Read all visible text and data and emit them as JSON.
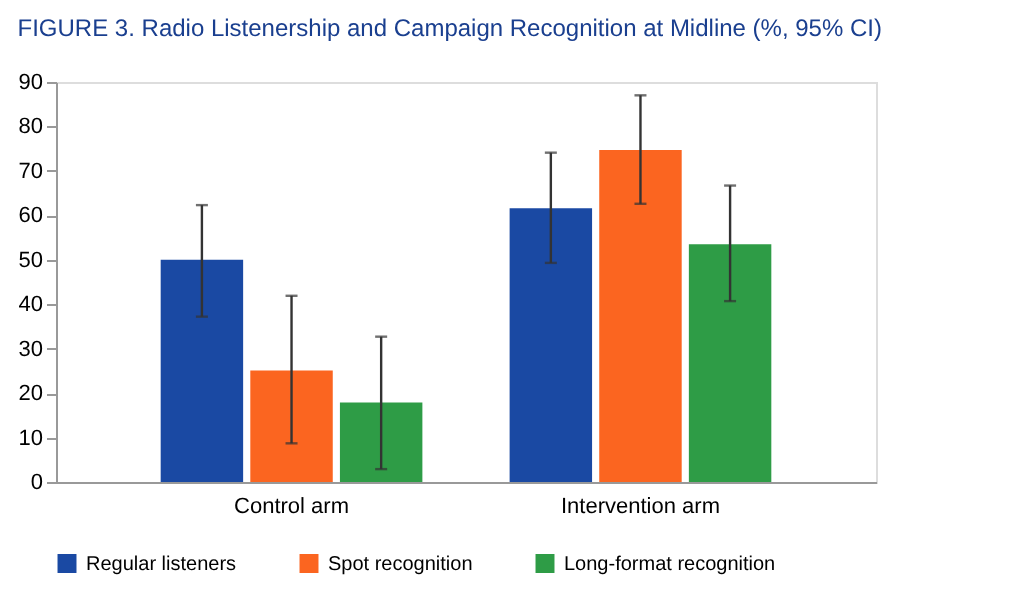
{
  "chart_data": {
    "type": "bar",
    "title": "FIGURE 3. Radio Listenership and Campaign Recognition at Midline (%, 95% CI)",
    "categories": [
      "Control arm",
      "Intervention arm"
    ],
    "series": [
      {
        "name": "Regular listeners",
        "color": "#1a49a3",
        "values": [
          50,
          61.6
        ],
        "errors": [
          [
            37.2,
            62.3
          ],
          [
            49.3,
            74.1
          ]
        ]
      },
      {
        "name": "Spot recognition",
        "color": "#fb6520",
        "values": [
          25.1,
          74.7
        ],
        "errors": [
          [
            8.7,
            41.9
          ],
          [
            62.6,
            87
          ]
        ]
      },
      {
        "name": "Long-format recognition",
        "color": "#2e9c46",
        "values": [
          17.9,
          53.5
        ],
        "errors": [
          [
            2.9,
            32.7
          ],
          [
            40.7,
            66.7
          ]
        ]
      }
    ],
    "ylim": [
      0,
      90
    ],
    "yticks": [
      0,
      10,
      20,
      30,
      40,
      50,
      60,
      70,
      80,
      90
    ],
    "grid": false,
    "legend": "bottom"
  }
}
